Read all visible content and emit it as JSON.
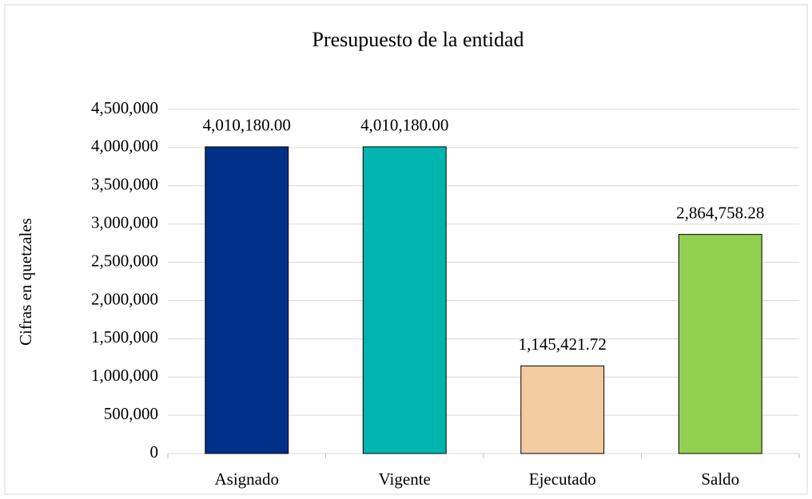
{
  "chart_data": {
    "type": "bar",
    "title": "Presupuesto de la entidad",
    "y_label": "Cifras en quetzales",
    "categories": [
      "Asignado",
      "Vigente",
      "Ejecutado",
      "Saldo"
    ],
    "values": [
      4010180.0,
      4010180.0,
      1145421.72,
      2864758.28
    ],
    "value_labels": [
      "4,010,180.00",
      "4,010,180.00",
      "1,145,421.72",
      "2,864,758.28"
    ],
    "colors": [
      "#003087",
      "#00b4b0",
      "#f2cba0",
      "#92d050"
    ],
    "ylim": [
      0,
      4500000
    ],
    "yticks": [
      0,
      {
        "value": 500000,
        "label": "500,000"
      },
      {
        "value": 1000000,
        "label": "1,000,000"
      },
      {
        "value": 1500000,
        "label": "1,500,000"
      },
      {
        "value": 2000000,
        "label": "2,000,000"
      },
      {
        "value": 2500000,
        "label": "2,500,000"
      },
      {
        "value": 3000000,
        "label": "3,000,000"
      },
      {
        "value": 3500000,
        "label": "3,500,000"
      },
      {
        "value": 4000000,
        "label": "4,000,000"
      },
      {
        "value": 4500000,
        "label": "4,500,000"
      }
    ],
    "grid": true
  }
}
